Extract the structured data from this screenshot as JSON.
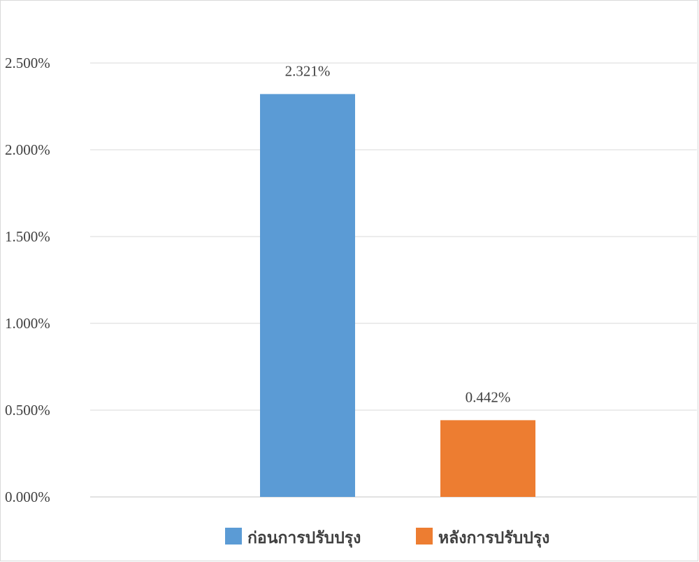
{
  "chart_data": {
    "type": "bar",
    "categories": [
      "ก่อนการปรับปรุง",
      "หลังการปรับปรุง"
    ],
    "values": [
      2.321,
      0.442
    ],
    "data_labels": [
      "2.321%",
      "0.442%"
    ],
    "colors": [
      "#5b9bd5",
      "#ed7d31"
    ],
    "ylim": [
      0,
      2.5
    ],
    "yticks": [
      0,
      0.5,
      1.0,
      1.5,
      2.0,
      2.5
    ],
    "ytick_labels": [
      "0.000%",
      "0.500%",
      "1.000%",
      "1.500%",
      "2.000%",
      "2.500%"
    ],
    "title": "",
    "xlabel": "",
    "ylabel": "",
    "grid": true,
    "legend_position": "bottom",
    "legend": [
      {
        "label": "ก่อนการปรับปรุง",
        "color": "#5b9bd5"
      },
      {
        "label": "หลังการปรับปรุง",
        "color": "#ed7d31"
      }
    ]
  }
}
